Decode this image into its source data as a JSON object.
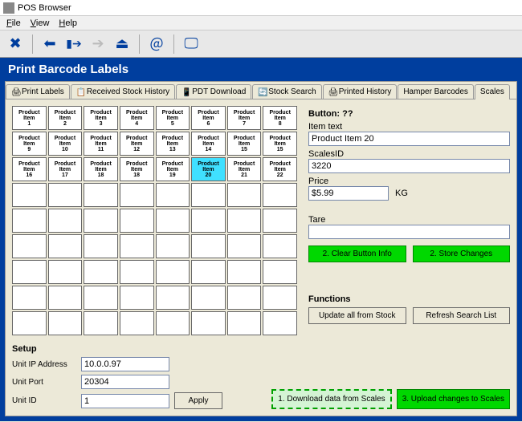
{
  "window": {
    "title": "POS Browser"
  },
  "menu": {
    "file": "File",
    "view": "View",
    "help": "Help"
  },
  "header": {
    "title": "Print Barcode Labels"
  },
  "tabs": [
    {
      "label": "Print Labels"
    },
    {
      "label": "Received Stock History"
    },
    {
      "label": "PDT Download"
    },
    {
      "label": "Stock Search"
    },
    {
      "label": "Printed History"
    },
    {
      "label": "Hamper Barcodes"
    },
    {
      "label": "Scales"
    }
  ],
  "active_tab": 6,
  "grid": {
    "cols": 8,
    "total_rows": 9,
    "items": [
      "Product Item 1",
      "Product Item 2",
      "Product Item 3",
      "Product Item 4",
      "Product Item 5",
      "Product Item 6",
      "Product Item 7",
      "Product Item 8",
      "Product Item 9",
      "Product Item 10",
      "Product Item 11",
      "Product Item 12",
      "Product Item 13",
      "Product Item 14",
      "Product Item 15",
      "Product Item 15",
      "Product Item 16",
      "Product Item 17",
      "Product Item 18",
      "Product Item 18",
      "Product Item 19",
      "Product Item 20",
      "Product Item 21",
      "Product Item 22"
    ],
    "selected_index": 21
  },
  "form": {
    "heading": "Button: ??",
    "item_text_label": "Item text",
    "item_text": "Product Item 20",
    "scalesid_label": "ScalesID",
    "scalesid": "3220",
    "price_label": "Price",
    "price": "$5.99",
    "unit": "KG",
    "tare_label": "Tare",
    "tare": "",
    "clear_btn": "2. Clear Button Info",
    "store_btn": "2. Store Changes"
  },
  "functions": {
    "heading": "Functions",
    "update_btn": "Update all from Stock",
    "refresh_btn": "Refresh Search List"
  },
  "setup": {
    "heading": "Setup",
    "ip_label": "Unit IP Address",
    "ip": "10.0.0.97",
    "port_label": "Unit Port",
    "port": "20304",
    "id_label": "Unit ID",
    "id": "1",
    "apply_btn": "Apply",
    "download_btn": "1. Download data from Scales",
    "upload_btn": "3. Upload changes to Scales"
  },
  "colors": {
    "brand_blue": "#003E9E",
    "green_btn": "#00d800",
    "selected_cell": "#40e0ff",
    "scalesid_bg": "#c8d0e0"
  }
}
